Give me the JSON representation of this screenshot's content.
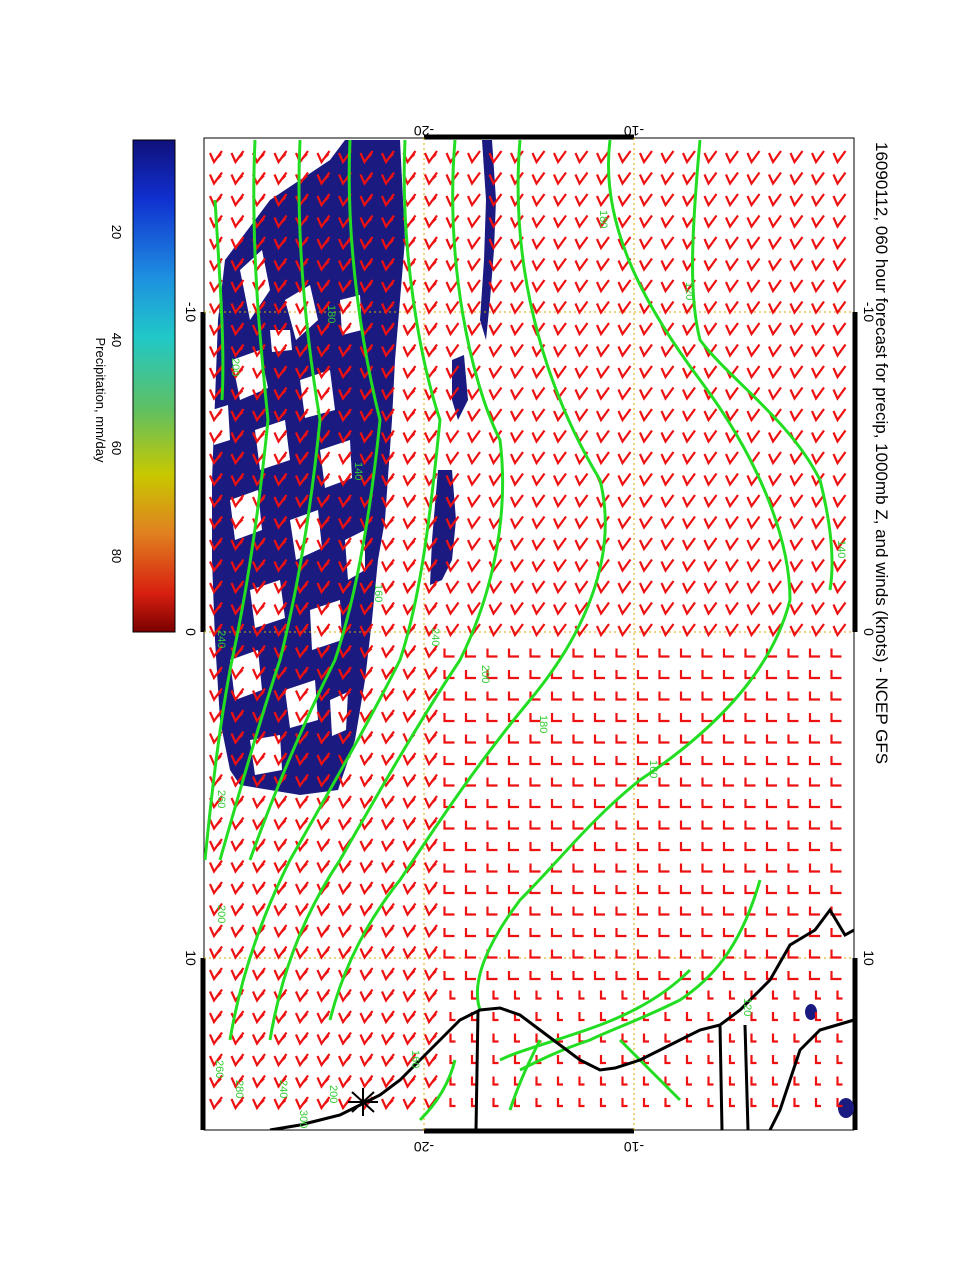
{
  "title": "16090112, 060 hour forecast for precip, 1000mb Z, and winds (knots) - NCEP GFS",
  "colors": {
    "precip_fill": "#1a1a80",
    "contour": "#22dd22",
    "contour_label": "#33cc33",
    "wind_barb": "#ee1111",
    "coast": "#000000",
    "grid": "#ddaa00"
  },
  "axes": {
    "top_ticks": [
      "-20",
      "-10"
    ],
    "bottom_ticks": [
      "-20",
      "-10"
    ],
    "left_ticks": [
      "-10",
      "0",
      "10"
    ],
    "right_ticks": [
      "-10",
      "0",
      "10"
    ]
  },
  "colorbar": {
    "label": "Precipitation, mm/day",
    "ticks": [
      "20",
      "40",
      "60",
      "80"
    ]
  },
  "contour_labels": [
    "180",
    "120",
    "140",
    "160",
    "180",
    "200",
    "240",
    "140",
    "160",
    "180",
    "200",
    "240",
    "260",
    "200",
    "260",
    "120",
    "160",
    "200",
    "240",
    "280",
    "300"
  ]
}
